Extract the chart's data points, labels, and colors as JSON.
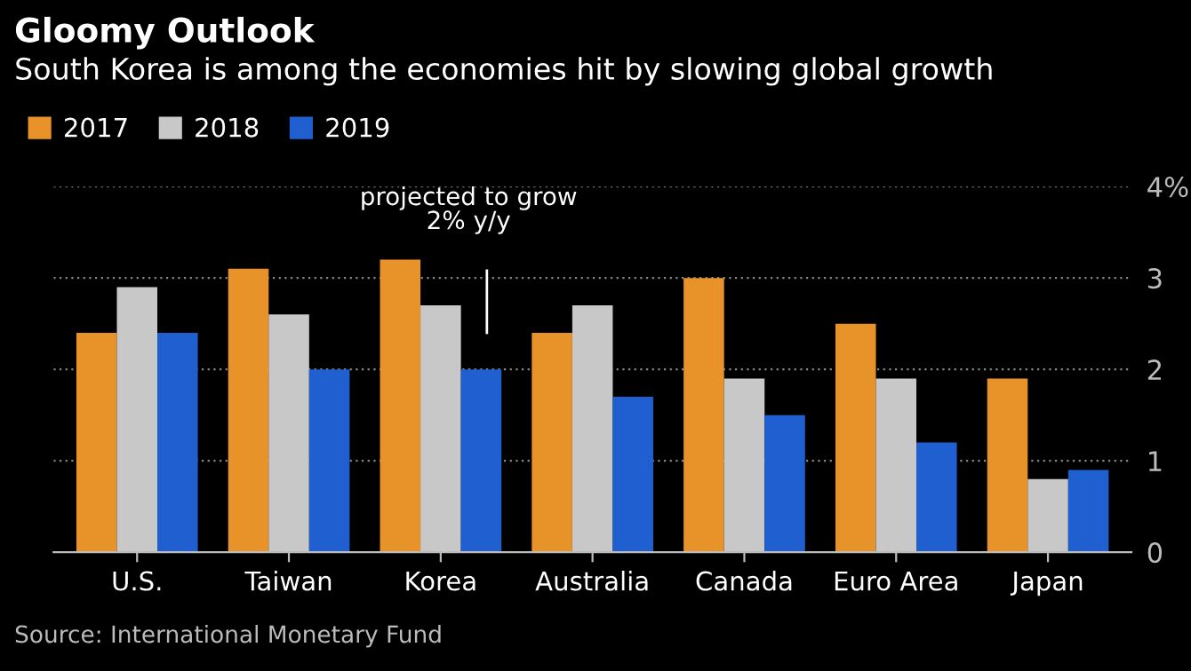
{
  "chart_data": {
    "type": "bar",
    "title": "Gloomy Outlook",
    "subtitle": "South Korea is among the economies hit by slowing global growth",
    "categories": [
      "U.S.",
      "Taiwan",
      "Korea",
      "Australia",
      "Canada",
      "Euro Area",
      "Japan"
    ],
    "series": [
      {
        "name": "2017",
        "color": "#e8922a",
        "values": [
          2.4,
          3.1,
          3.2,
          2.4,
          3.0,
          2.5,
          1.9
        ]
      },
      {
        "name": "2018",
        "color": "#c8c8c8",
        "values": [
          2.9,
          2.6,
          2.7,
          2.7,
          1.9,
          1.9,
          0.8
        ]
      },
      {
        "name": "2019",
        "color": "#1f5fcf",
        "values": [
          2.4,
          2.0,
          2.0,
          1.7,
          1.5,
          1.2,
          0.9
        ]
      }
    ],
    "ylim": [
      0,
      4
    ],
    "yticks": [
      0,
      1,
      2,
      3,
      {
        "value": 4,
        "label": "4%"
      }
    ],
    "grid": "y",
    "legend": "top left",
    "annotations": [
      "projected to grow\n2% y/y",
      "Source: International Monetary Fund"
    ]
  }
}
